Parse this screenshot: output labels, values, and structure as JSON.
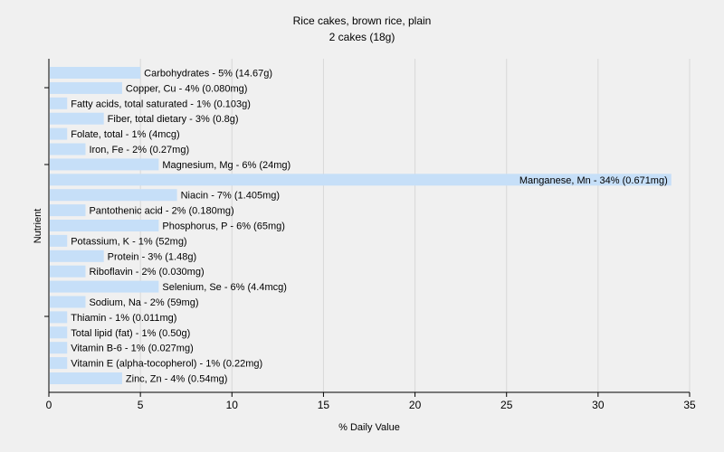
{
  "chart_data": {
    "type": "bar",
    "orientation": "horizontal",
    "title": "Rice cakes, brown rice, plain",
    "subtitle": "2 cakes (18g)",
    "xlabel": "% Daily Value",
    "ylabel": "Nutrient",
    "xlim": [
      0,
      35
    ],
    "xticks": [
      0,
      5,
      10,
      15,
      20,
      25,
      30,
      35
    ],
    "grid": true,
    "bar_color": "#c6dff8",
    "categories": [
      "Carbohydrates",
      "Copper, Cu",
      "Fatty acids, total saturated",
      "Fiber, total dietary",
      "Folate, total",
      "Iron, Fe",
      "Magnesium, Mg",
      "Manganese, Mn",
      "Niacin",
      "Pantothenic acid",
      "Phosphorus, P",
      "Potassium, K",
      "Protein",
      "Riboflavin",
      "Selenium, Se",
      "Sodium, Na",
      "Thiamin",
      "Total lipid (fat)",
      "Vitamin B-6",
      "Vitamin E (alpha-tocopherol)",
      "Zinc, Zn"
    ],
    "values": [
      5,
      4,
      1,
      3,
      1,
      2,
      6,
      34,
      7,
      2,
      6,
      1,
      3,
      2,
      6,
      2,
      1,
      1,
      1,
      1,
      4
    ],
    "labels": [
      "Carbohydrates - 5% (14.67g)",
      "Copper, Cu - 4% (0.080mg)",
      "Fatty acids, total saturated - 1% (0.103g)",
      "Fiber, total dietary - 3% (0.8g)",
      "Folate, total - 1% (4mcg)",
      "Iron, Fe - 2% (0.27mg)",
      "Magnesium, Mg - 6% (24mg)",
      "Manganese, Mn - 34% (0.671mg)",
      "Niacin - 7% (1.405mg)",
      "Pantothenic acid - 2% (0.180mg)",
      "Phosphorus, P - 6% (65mg)",
      "Potassium, K - 1% (52mg)",
      "Protein - 3% (1.48g)",
      "Riboflavin - 2% (0.030mg)",
      "Selenium, Se - 6% (4.4mcg)",
      "Sodium, Na - 2% (59mg)",
      "Thiamin - 1% (0.011mg)",
      "Total lipid (fat) - 1% (0.50g)",
      "Vitamin B-6 - 1% (0.027mg)",
      "Vitamin E (alpha-tocopherol) - 1% (0.22mg)",
      "Zinc, Zn - 4% (0.54mg)"
    ]
  }
}
